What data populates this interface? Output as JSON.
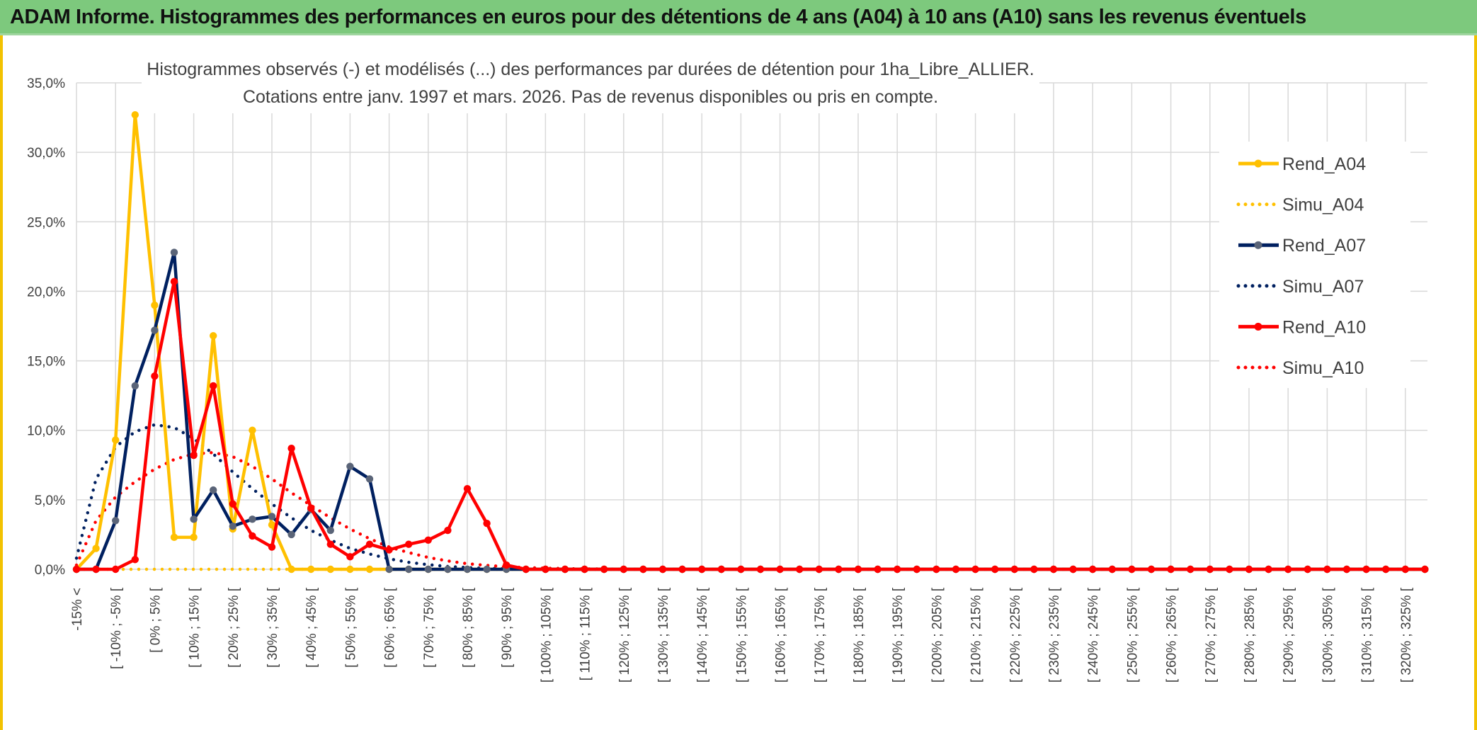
{
  "banner": {
    "title": "ADAM Informe. Histogrammes des performances en euros pour des détentions de 4 ans (A04) à 10 ans (A10) sans les revenus éventuels"
  },
  "colors": {
    "banner_bg": "#7dc97d",
    "frame": "#f2c200",
    "A04": "#ffc000",
    "A07": "#002060",
    "A10": "#ff0000"
  },
  "chart_data": {
    "type": "line",
    "title": "Histogrammes observés (-) et modélisés (...) des performances par durées de détention pour 1ha_Libre_ALLIER.",
    "subtitle": "Cotations entre janv. 1997 et mars. 2026. Pas de revenus disponibles ou pris en compte.",
    "ylim": [
      0,
      35
    ],
    "y_ticks": [
      "0,0%",
      "5,0%",
      "10,0%",
      "15,0%",
      "20,0%",
      "25,0%",
      "30,0%",
      "35,0%"
    ],
    "grid": true,
    "legend_position": "right",
    "x_labels": [
      "-15% <",
      "[ -10% ; -5% [",
      "[ 0% ; 5% [",
      "[ 10% ; 15% [",
      "[ 20% ; 25% [",
      "[ 30% ; 35% [",
      "[ 40% ; 45% [",
      "[ 50% ; 55% [",
      "[ 60% ; 65% [",
      "[ 70% ; 75% [",
      "[ 80% ; 85% [",
      "[ 90% ; 95% [",
      "[ 100% ; 105% [",
      "[ 110% ; 115% [",
      "[ 120% ; 125% [",
      "[ 130% ; 135% [",
      "[ 140% ; 145% [",
      "[ 150% ; 155% [",
      "[ 160% ; 165% [",
      "[ 170% ; 175% [",
      "[ 180% ; 185% [",
      "[ 190% ; 195% [",
      "[ 200% ; 205% [",
      "[ 210% ; 215% [",
      "[ 220% ; 225% [",
      "[ 230% ; 235% [",
      "[ 240% ; 245% [",
      "[ 250% ; 255% [",
      "[ 260% ; 265% [",
      "[ 270% ; 275% [",
      "[ 280% ; 285% [",
      "[ 290% ; 295% [",
      "[ 300% ; 305% [",
      "[ 310% ; 315% [",
      "[ 320% ; 325% ["
    ],
    "series": [
      {
        "name": "Rend_A04",
        "style": "solid",
        "color": "#ffc000",
        "values": [
          0,
          1.5,
          9.3,
          32.7,
          19.0,
          2.3,
          2.3,
          16.8,
          2.9,
          10.0,
          3.2,
          0,
          0,
          0,
          0,
          0,
          0
        ]
      },
      {
        "name": "Simu_A04",
        "style": "dotted",
        "color": "#ffc000",
        "values": [
          0,
          0,
          0,
          0,
          0,
          0,
          0,
          0,
          0,
          0,
          0,
          0,
          0,
          0,
          0,
          0,
          0,
          0,
          0,
          0
        ]
      },
      {
        "name": "Rend_A07",
        "style": "solid",
        "color": "#002060",
        "values": [
          0,
          0,
          3.5,
          13.2,
          17.2,
          22.8,
          3.6,
          5.7,
          3.1,
          3.6,
          3.8,
          2.5,
          4.3,
          2.8,
          7.4,
          6.5,
          0,
          0,
          0,
          0,
          0,
          0,
          0,
          0,
          0,
          0,
          0,
          0,
          0,
          0,
          0,
          0,
          0,
          0,
          0,
          0,
          0,
          0,
          0,
          0,
          0,
          0,
          0,
          0,
          0,
          0,
          0,
          0,
          0,
          0,
          0,
          0,
          0,
          0,
          0,
          0,
          0,
          0,
          0,
          0,
          0,
          0,
          0,
          0,
          0,
          0,
          0,
          0,
          0,
          0
        ]
      },
      {
        "name": "Simu_A07",
        "style": "dotted",
        "color": "#002060",
        "values": [
          0.8,
          6.5,
          8.8,
          9.9,
          10.4,
          10.2,
          9.4,
          8.3,
          7.0,
          5.8,
          4.7,
          3.7,
          2.8,
          2.1,
          1.5,
          1.1,
          0.75,
          0.5,
          0.33,
          0.2,
          0.12,
          0.07,
          0.04,
          0.02,
          0,
          0
        ]
      },
      {
        "name": "Rend_A10",
        "style": "solid",
        "color": "#ff0000",
        "values": [
          0,
          0,
          0,
          0.7,
          13.9,
          20.7,
          8.2,
          13.2,
          4.7,
          2.4,
          1.6,
          8.7,
          4.4,
          1.8,
          0.9,
          1.8,
          1.4,
          1.8,
          2.1,
          2.8,
          5.8,
          3.3,
          0.3,
          0,
          0,
          0,
          0,
          0,
          0,
          0,
          0,
          0,
          0,
          0,
          0,
          0,
          0,
          0,
          0,
          0,
          0,
          0,
          0,
          0,
          0,
          0,
          0,
          0,
          0,
          0,
          0,
          0,
          0,
          0,
          0,
          0,
          0,
          0,
          0,
          0,
          0,
          0,
          0,
          0,
          0,
          0,
          0,
          0,
          0,
          0
        ]
      },
      {
        "name": "Simu_A10",
        "style": "dotted",
        "color": "#ff0000",
        "values": [
          0.3,
          3.5,
          5.2,
          6.3,
          7.2,
          7.9,
          8.3,
          8.4,
          8.1,
          7.4,
          6.5,
          5.5,
          4.6,
          3.7,
          2.9,
          2.2,
          1.6,
          1.2,
          0.85,
          0.6,
          0.4,
          0.28,
          0.18,
          0.12,
          0.08,
          0.05,
          0.03,
          0.02,
          0
        ]
      }
    ]
  }
}
